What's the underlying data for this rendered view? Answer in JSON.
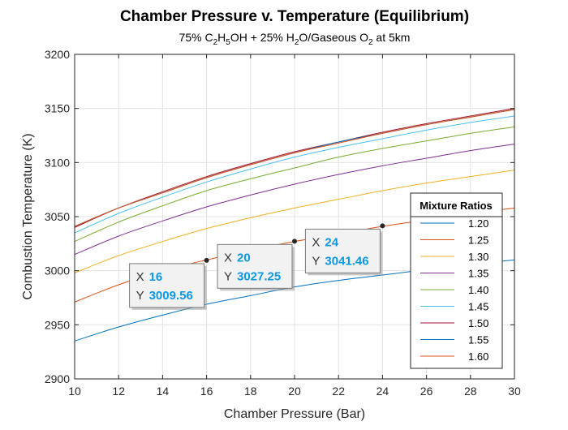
{
  "chart_data": {
    "type": "line",
    "title": "Chamber Pressure v. Temperature (Equilibrium)",
    "subtitle_parts": [
      {
        "t": "75% C",
        "sub": false
      },
      {
        "t": "2",
        "sub": true
      },
      {
        "t": "H",
        "sub": false
      },
      {
        "t": "5",
        "sub": true
      },
      {
        "t": "OH + 25% H",
        "sub": false
      },
      {
        "t": "2",
        "sub": true
      },
      {
        "t": "O/Gaseous O",
        "sub": false
      },
      {
        "t": "2",
        "sub": true
      },
      {
        "t": " at 5km",
        "sub": false
      }
    ],
    "xlabel": "Chamber Pressure (Bar)",
    "ylabel": "Combustion Temperature (K)",
    "xlim": [
      10,
      30
    ],
    "ylim": [
      2900,
      3200
    ],
    "xticks": [
      10,
      12,
      14,
      16,
      18,
      20,
      22,
      24,
      26,
      28,
      30
    ],
    "yticks": [
      2900,
      2950,
      3000,
      3050,
      3100,
      3150,
      3200
    ],
    "grid": true,
    "legend_title": "Mixture Ratios",
    "legend_position": "right",
    "x": [
      10,
      12,
      14,
      16,
      18,
      20,
      22,
      24,
      26,
      28,
      30
    ],
    "series": [
      {
        "name": "1.20",
        "color": "#0072BD",
        "values": [
          2935,
          2948,
          2959,
          2969,
          2977,
          2985,
          2991,
          2996,
          3001,
          3006,
          3010
        ]
      },
      {
        "name": "1.25",
        "color": "#D95319",
        "values": [
          2971,
          2987,
          3000,
          3010,
          3019,
          3027,
          3034,
          3041,
          3047,
          3053,
          3058
        ]
      },
      {
        "name": "1.30",
        "color": "#EDB120",
        "values": [
          2998,
          3014,
          3027,
          3039,
          3049,
          3058,
          3066,
          3074,
          3081,
          3087,
          3093
        ]
      },
      {
        "name": "1.35",
        "color": "#7E2F8E",
        "values": [
          3015,
          3032,
          3046,
          3059,
          3070,
          3080,
          3089,
          3097,
          3104,
          3111,
          3117
        ]
      },
      {
        "name": "1.40",
        "color": "#77AC30",
        "values": [
          3027,
          3045,
          3060,
          3074,
          3085,
          3095,
          3105,
          3113,
          3120,
          3127,
          3133
        ]
      },
      {
        "name": "1.45",
        "color": "#4DBEEE",
        "values": [
          3035,
          3053,
          3068,
          3082,
          3094,
          3105,
          3114,
          3122,
          3130,
          3137,
          3143
        ]
      },
      {
        "name": "1.50",
        "color": "#A2142F",
        "values": [
          3040,
          3058,
          3073,
          3087,
          3099,
          3110,
          3119,
          3128,
          3136,
          3143,
          3150
        ]
      },
      {
        "name": "1.55",
        "color": "#0072BD",
        "values": [
          3041,
          3058,
          3072,
          3086,
          3098,
          3109,
          3119,
          3127,
          3135,
          3142,
          3149
        ]
      },
      {
        "name": "1.60",
        "color": "#D95319",
        "values": [
          3041,
          3058,
          3072,
          3086,
          3098,
          3109,
          3118,
          3127,
          3135,
          3142,
          3149
        ]
      }
    ],
    "datatips": [
      {
        "x": 16,
        "y": 3009.56,
        "x_label": "X",
        "y_label": "Y",
        "x_text": "16",
        "y_text": "3009.56"
      },
      {
        "x": 20,
        "y": 3027.25,
        "x_label": "X",
        "y_label": "Y",
        "x_text": "20",
        "y_text": "3027.25"
      },
      {
        "x": 24,
        "y": 3041.46,
        "x_label": "X",
        "y_label": "Y",
        "x_text": "24",
        "y_text": "3041.46"
      }
    ]
  }
}
